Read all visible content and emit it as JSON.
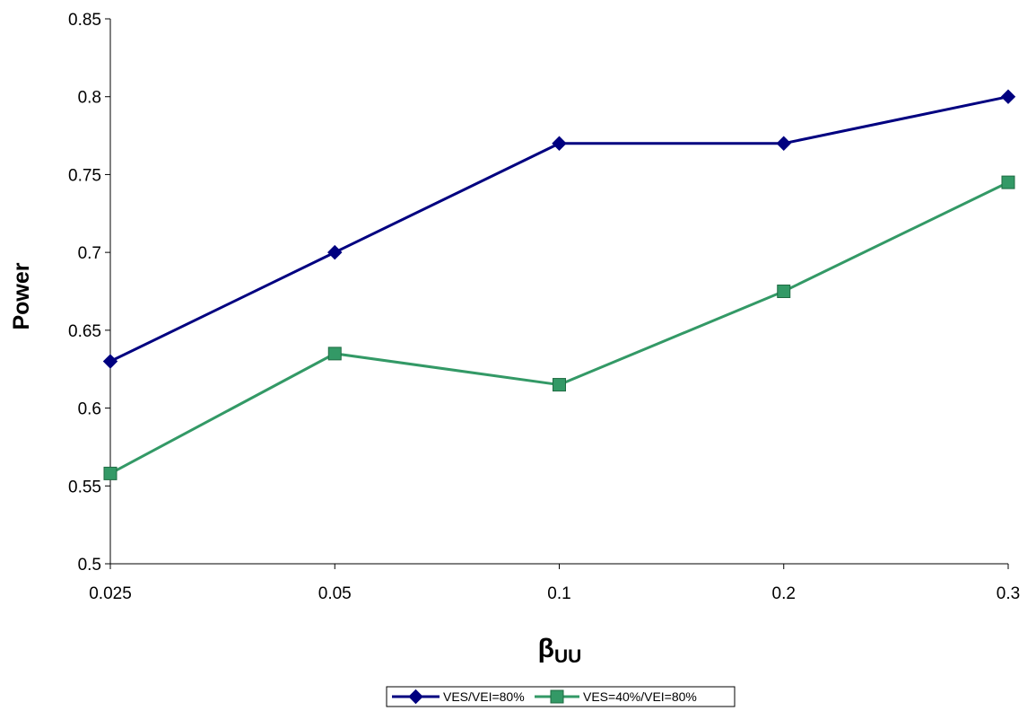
{
  "chart_data": {
    "type": "line",
    "title": "",
    "xlabel": "β",
    "xlabel_subscript": "UU",
    "ylabel": "Power",
    "categories": [
      "0.025",
      "0.05",
      "0.1",
      "0.2",
      "0.3"
    ],
    "yticks": [
      "0.5",
      "0.55",
      "0.6",
      "0.65",
      "0.7",
      "0.75",
      "0.8",
      "0.85"
    ],
    "ylim": [
      0.5,
      0.85
    ],
    "grid": false,
    "legend_position": "bottom",
    "series": [
      {
        "name": "VES/VEI=80%",
        "values": [
          0.63,
          0.7,
          0.77,
          0.77,
          0.8
        ],
        "color": "#000080",
        "marker": "diamond"
      },
      {
        "name": "VES=40%/VEI=80%",
        "values": [
          0.558,
          0.635,
          0.615,
          0.675,
          0.745
        ],
        "color": "#339966",
        "marker": "square"
      }
    ]
  }
}
